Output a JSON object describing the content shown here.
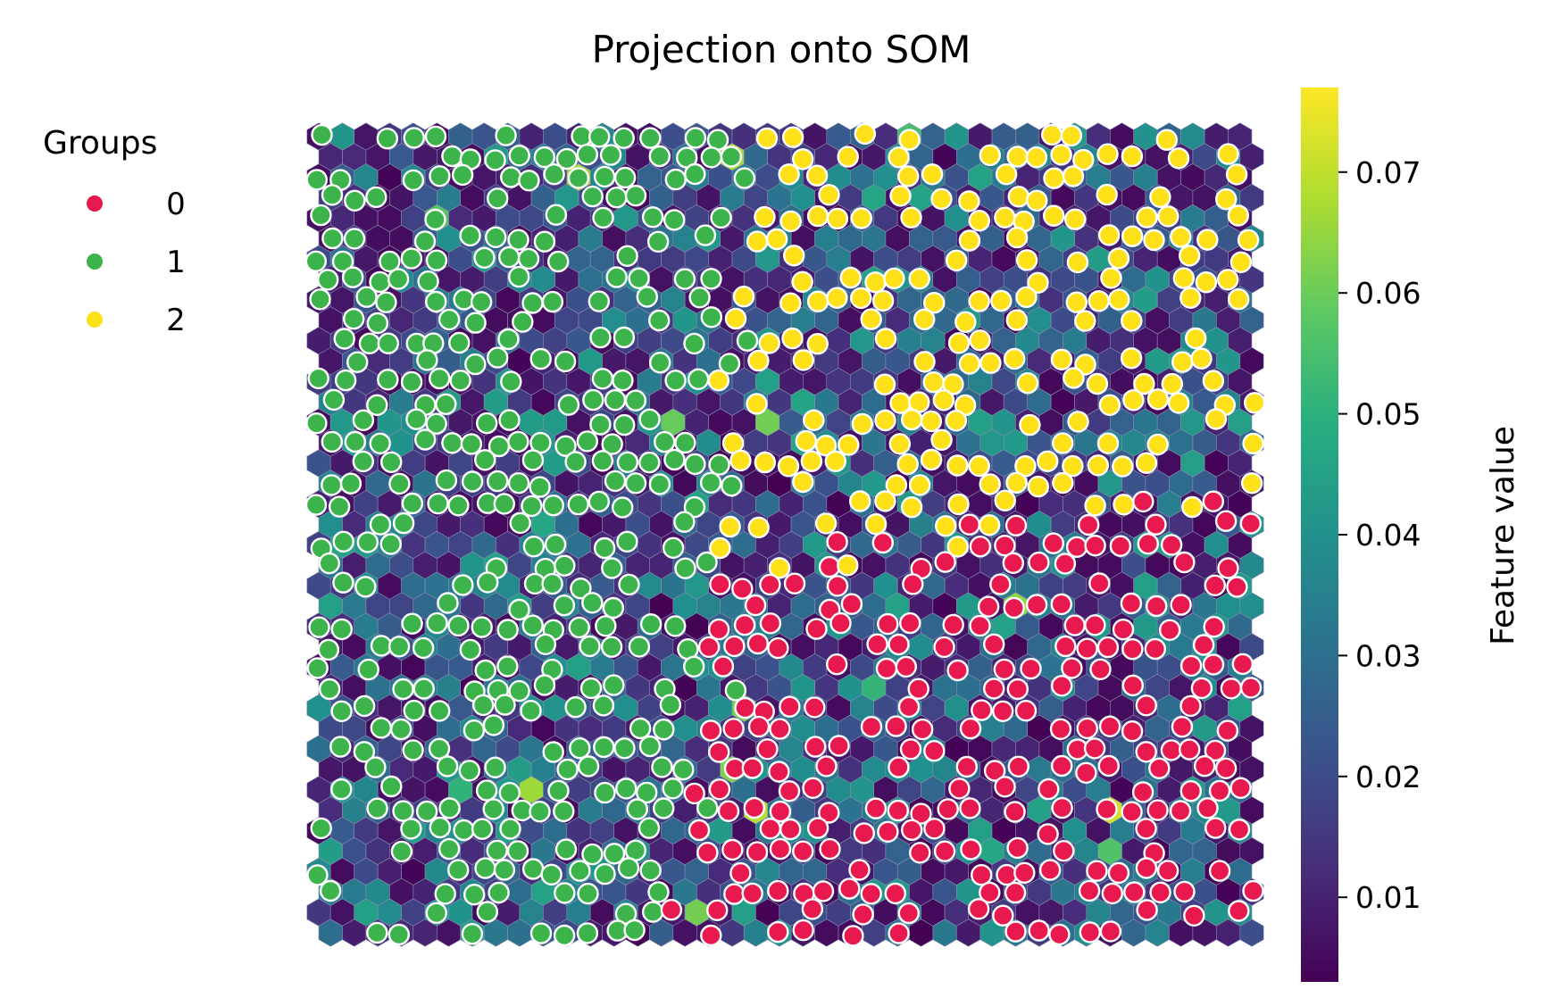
{
  "chart_data": {
    "type": "hexbin-som",
    "title": "Projection onto SOM",
    "legend": {
      "title": "Groups",
      "placement": "top-left",
      "entries": [
        {
          "label": "0",
          "color": "#e8194f"
        },
        {
          "label": "1",
          "color": "#3cb44b"
        },
        {
          "label": "2",
          "color": "#ffe119"
        }
      ]
    },
    "grid": {
      "rows": 40,
      "cols": 40,
      "shape": "hexagonal"
    },
    "colorbar": {
      "label": "Feature value",
      "colormap": "viridis",
      "range": [
        0.003,
        0.077
      ],
      "ticks": [
        0.01,
        0.02,
        0.03,
        0.04,
        0.05,
        0.06,
        0.07
      ],
      "tick_labels": [
        "0.01",
        "0.02",
        "0.03",
        "0.04",
        "0.05",
        "0.06",
        "0.07"
      ]
    },
    "group_regions": [
      {
        "group": "1",
        "region": "left half, top to bottom"
      },
      {
        "group": "2",
        "region": "upper right"
      },
      {
        "group": "0",
        "region": "lower right"
      }
    ]
  }
}
